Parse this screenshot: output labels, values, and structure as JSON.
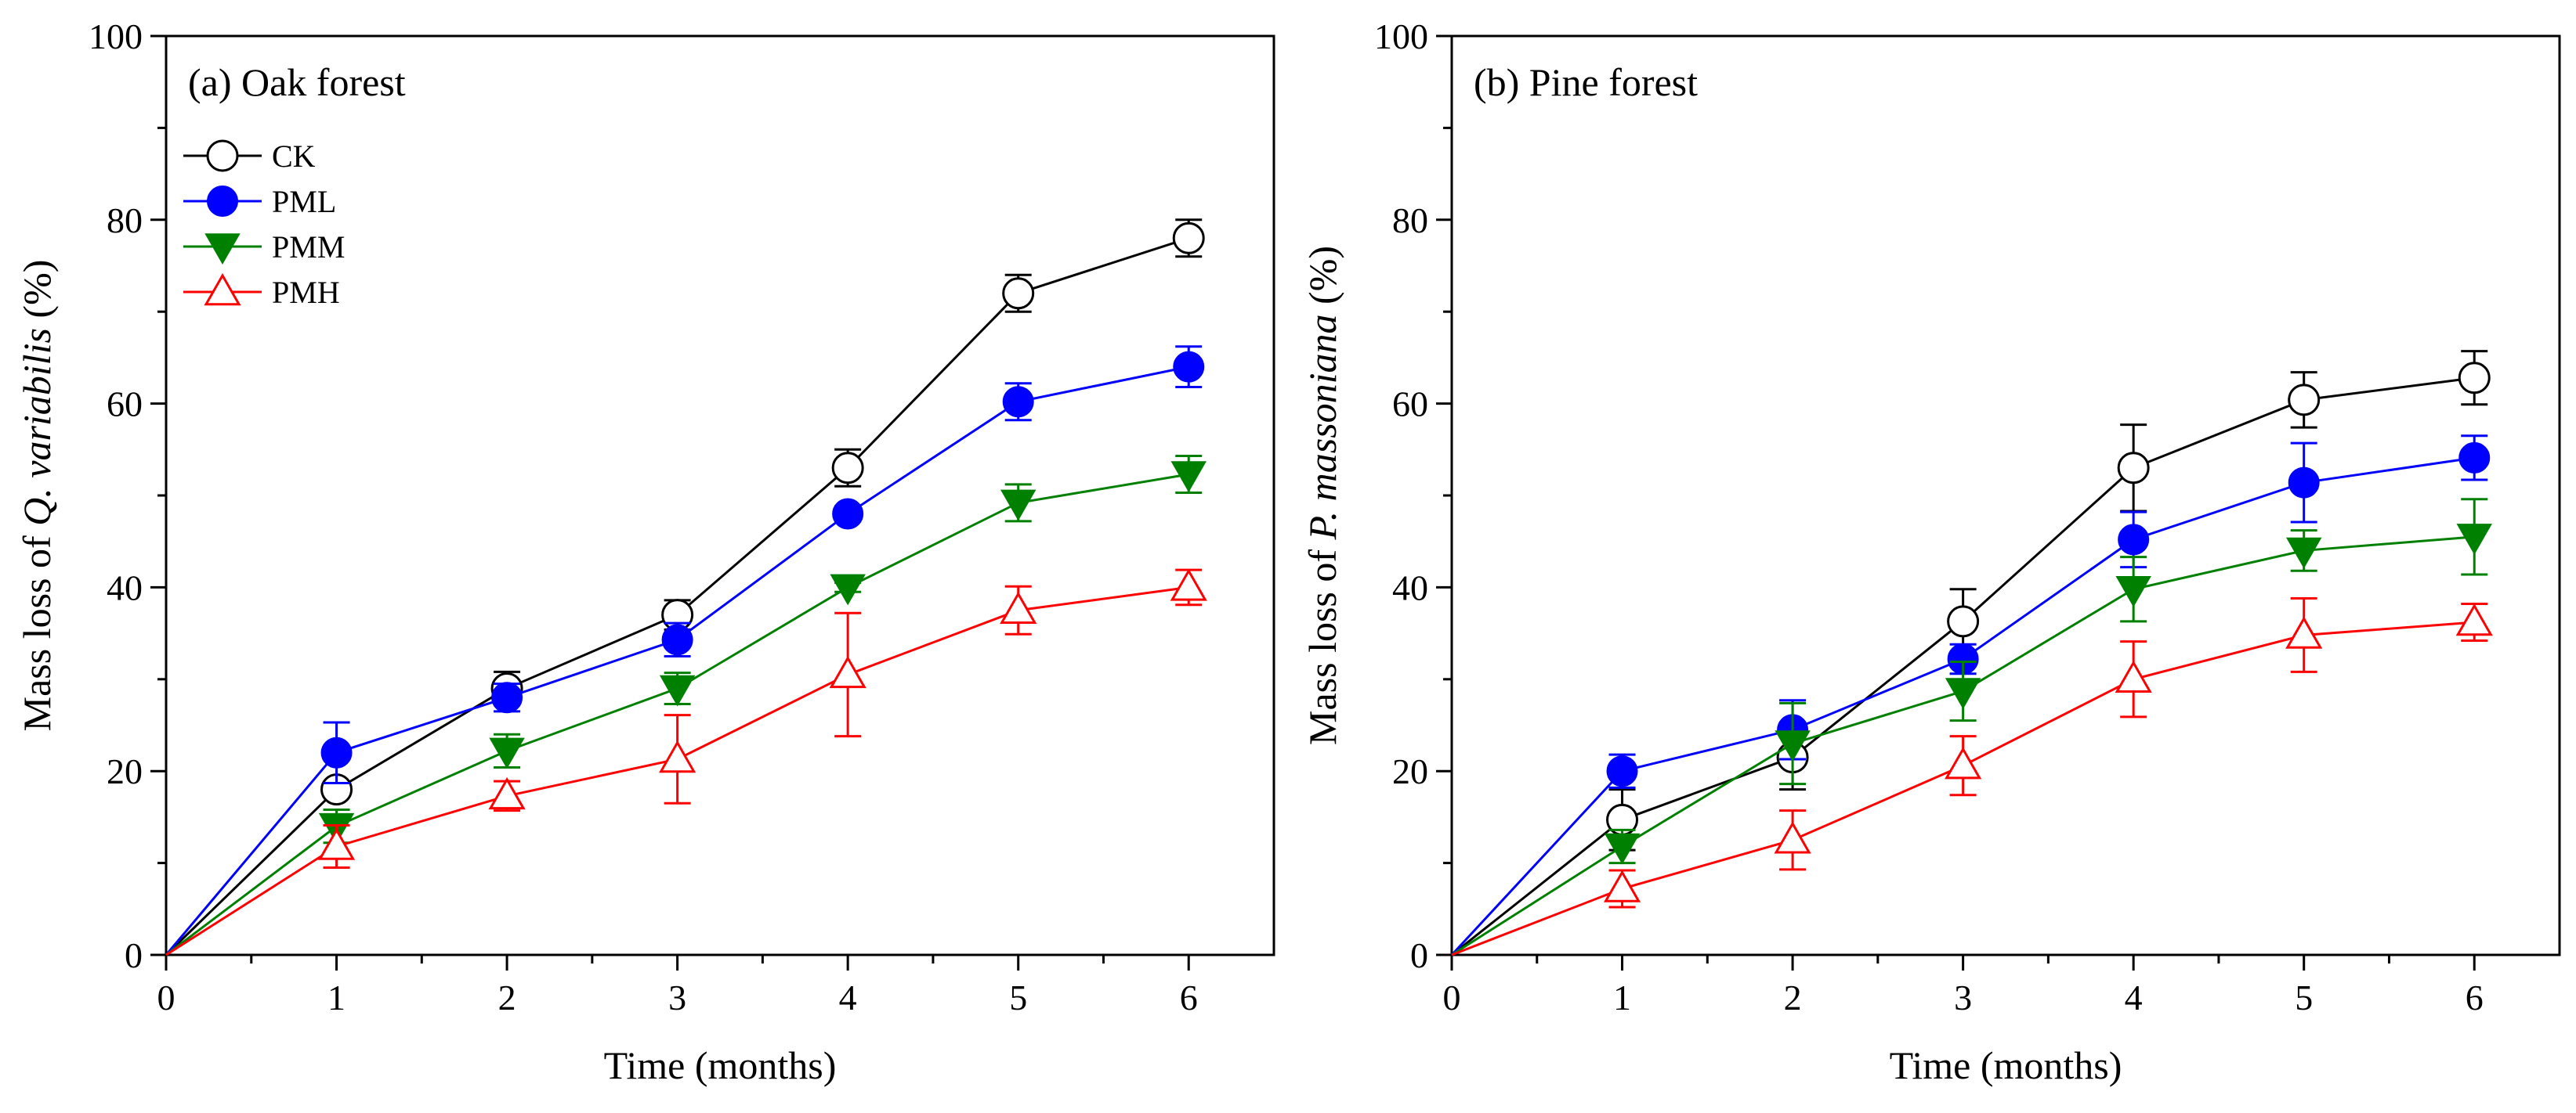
{
  "chart_data": [
    {
      "type": "line",
      "panel_title": "(a) Oak forest",
      "xlabel": "Time (months)",
      "ylabel": {
        "prefix": "Mass loss of ",
        "species": "Q. variabilis",
        "suffix": " (%)"
      },
      "x": [
        0,
        1,
        2,
        3,
        4,
        5,
        6
      ],
      "xlim": [
        0,
        6.5
      ],
      "ylim": [
        0,
        100
      ],
      "x_ticks": [
        0,
        1,
        2,
        3,
        4,
        5,
        6
      ],
      "y_ticks": [
        0,
        20,
        40,
        60,
        80,
        100
      ],
      "legend_position": "top-left",
      "series": [
        {
          "name": "CK",
          "color": "#000000",
          "marker": "open-circle",
          "values": [
            0,
            18,
            29,
            37,
            53,
            72,
            78
          ],
          "errors": [
            0,
            0.8,
            1.8,
            1.6,
            2.0,
            2.0,
            2.0
          ]
        },
        {
          "name": "PML",
          "color": "#0000ff",
          "marker": "filled-circle",
          "values": [
            0,
            22,
            28,
            34.3,
            48,
            60.2,
            64
          ],
          "errors": [
            0,
            3.3,
            1.5,
            1.8,
            0.8,
            2.0,
            2.2
          ]
        },
        {
          "name": "PMM",
          "color": "#008000",
          "marker": "filled-triangle-down",
          "values": [
            0,
            14,
            22.2,
            29,
            40,
            49.2,
            52.3
          ],
          "errors": [
            0,
            1.8,
            1.8,
            1.7,
            0.5,
            2.0,
            2.0
          ]
        },
        {
          "name": "PMH",
          "color": "#ff0000",
          "marker": "open-triangle-up",
          "values": [
            0,
            11.8,
            17.3,
            21.3,
            30.5,
            37.5,
            40
          ],
          "errors": [
            0,
            2.3,
            1.6,
            4.8,
            6.7,
            2.6,
            1.9
          ]
        }
      ]
    },
    {
      "type": "line",
      "panel_title": "(b) Pine forest",
      "xlabel": "Time (months)",
      "ylabel": {
        "prefix": "Mass loss of ",
        "species": "P. massoniana",
        "suffix": " (%)"
      },
      "x": [
        0,
        1,
        2,
        3,
        4,
        5,
        6
      ],
      "xlim": [
        0,
        6.5
      ],
      "ylim": [
        0,
        100
      ],
      "x_ticks": [
        0,
        1,
        2,
        3,
        4,
        5,
        6
      ],
      "y_ticks": [
        0,
        20,
        40,
        60,
        80,
        100
      ],
      "series": [
        {
          "name": "CK",
          "color": "#000000",
          "marker": "open-circle",
          "values": [
            0,
            14.7,
            21.5,
            36.3,
            53,
            60.4,
            62.8
          ],
          "errors": [
            0,
            3.3,
            3.5,
            3.5,
            4.7,
            3.0,
            2.9
          ]
        },
        {
          "name": "PML",
          "color": "#0000ff",
          "marker": "filled-circle",
          "values": [
            0,
            20,
            24.5,
            32.2,
            45.2,
            51.4,
            54.1
          ],
          "errors": [
            0,
            1.8,
            3.2,
            1.6,
            3.0,
            4.3,
            2.4
          ]
        },
        {
          "name": "PMM",
          "color": "#008000",
          "marker": "filled-triangle-down",
          "values": [
            0,
            11.8,
            23,
            28.7,
            39.8,
            44,
            45.5
          ],
          "errors": [
            0,
            1.8,
            4.4,
            3.2,
            3.5,
            2.2,
            4.1
          ]
        },
        {
          "name": "PMH",
          "color": "#ff0000",
          "marker": "open-triangle-up",
          "values": [
            0,
            7.2,
            12.5,
            20.6,
            30,
            34.8,
            36.2
          ],
          "errors": [
            0,
            2.0,
            3.2,
            3.2,
            4.1,
            4.0,
            2.0
          ]
        }
      ]
    }
  ]
}
